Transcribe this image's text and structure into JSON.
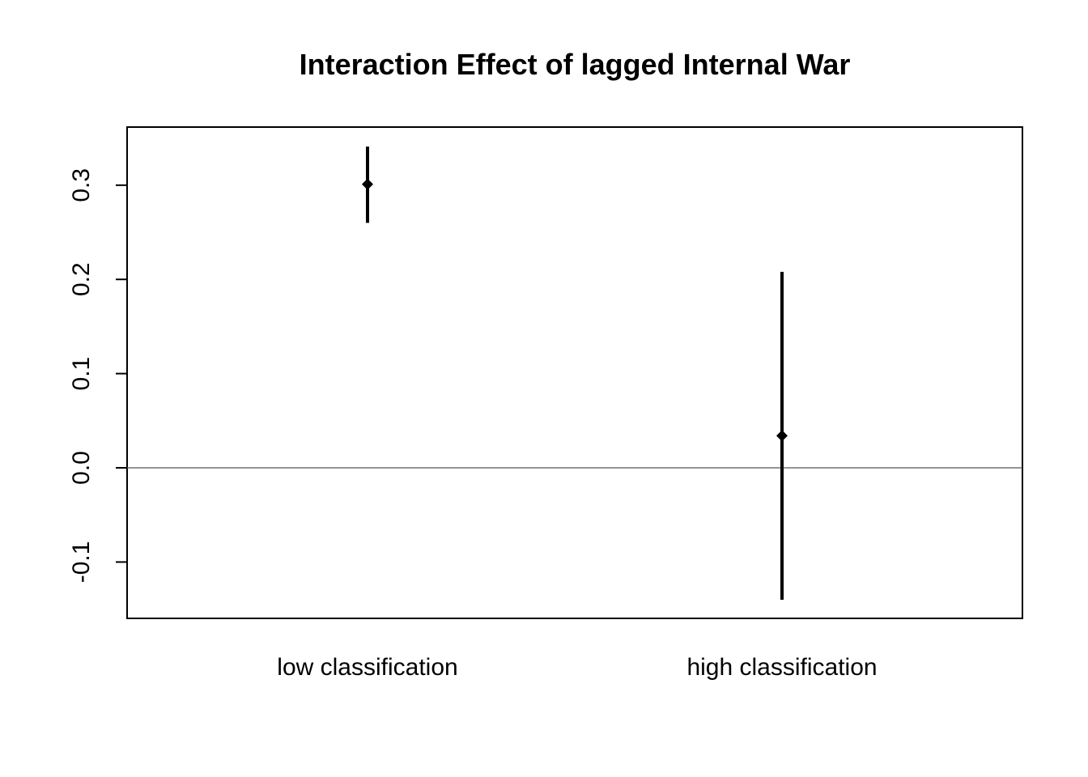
{
  "chart_data": {
    "type": "scatter",
    "title": "Interaction Effect of lagged Internal War",
    "xlabel": "",
    "ylabel": "",
    "categories": [
      "low classification",
      "high classification"
    ],
    "points": [
      {
        "category": "low classification",
        "estimate": 0.301,
        "lower": 0.26,
        "upper": 0.341
      },
      {
        "category": "high classification",
        "estimate": 0.034,
        "lower": -0.14,
        "upper": 0.208
      }
    ],
    "ylim": [
      -0.16,
      0.362
    ],
    "yticks": [
      -0.1,
      0.0,
      0.1,
      0.2,
      0.3
    ],
    "ytick_labels": [
      "-0.1",
      "0.0",
      "0.1",
      "0.2",
      "0.3"
    ],
    "reference_line": 0,
    "grid": false,
    "legend": "none",
    "colors": {
      "marks": "#000000",
      "reference_line": "#555555"
    }
  }
}
